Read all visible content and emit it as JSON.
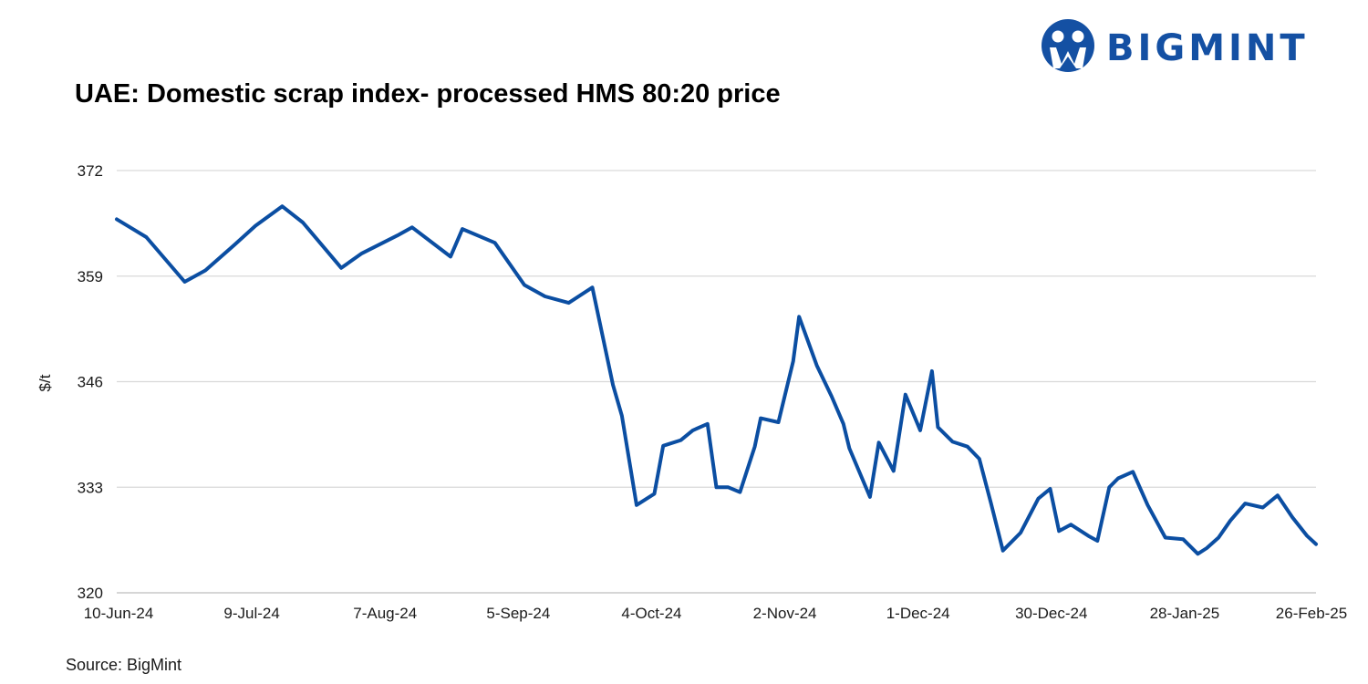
{
  "logo": {
    "text": "BIGMINT",
    "color": "#1450a3"
  },
  "source": "Source: BigMint",
  "chart_data": {
    "type": "line",
    "title": "UAE: Domestic scrap index- processed HMS 80:20 price",
    "xlabel": "",
    "ylabel": "$/t",
    "ylim": [
      320,
      372
    ],
    "yticks": [
      320,
      333,
      346,
      359,
      372
    ],
    "xticks": [
      "10-Jun-24",
      "9-Jul-24",
      "7-Aug-24",
      "5-Sep-24",
      "4-Oct-24",
      "2-Nov-24",
      "1-Dec-24",
      "30-Dec-24",
      "28-Jan-25",
      "26-Feb-25"
    ],
    "grid": true,
    "color": "#0b4ea2",
    "series": [
      {
        "x": [
          "10-Jun-24",
          "12-Jun-24",
          "17-Jun-24",
          "19-Jun-24",
          "24-Jun-24",
          "26-Jun-24",
          "1-Jul-24",
          "3-Jul-24",
          "5-Jul-24",
          "11-Jul-24",
          "13-Jul-24",
          "17-Jul-24",
          "19-Jul-24",
          "24-Jul-24",
          "26-Jul-24",
          "2-Aug-24",
          "7-Aug-24",
          "9-Aug-24",
          "16-Aug-24",
          "23-Aug-24",
          "29-Aug-24",
          "31-Aug-24",
          "5-Sep-24",
          "9-Sep-24",
          "13-Sep-24",
          "15-Sep-24",
          "21-Sep-24",
          "23-Sep-24",
          "28-Sep-24",
          "30-Sep-24",
          "4-Oct-24",
          "8-Oct-24",
          "10-Oct-24",
          "16-Oct-24",
          "18-Oct-24",
          "22-Oct-24",
          "24-Oct-24",
          "30-Oct-24",
          "1-Nov-24",
          "5-Nov-24",
          "7-Nov-24",
          "13-Nov-24",
          "15-Nov-24",
          "17-Nov-24",
          "21-Nov-24",
          "24-Nov-24",
          "30-Nov-24",
          "2-Dec-24",
          "7-Dec-24",
          "9-Dec-24",
          "14-Dec-24",
          "16-Dec-24",
          "21-Dec-24",
          "23-Dec-24",
          "27-Dec-24",
          "29-Dec-24",
          "4-Jan-25",
          "6-Jan-25",
          "10-Jan-25",
          "12-Jan-25",
          "16-Jan-25",
          "20-Jan-25",
          "22-Jan-25",
          "27-Jan-25",
          "29-Jan-25",
          "31-Jan-25",
          "4-Feb-25",
          "8-Feb-25",
          "10-Feb-25",
          "15-Feb-25",
          "17-Feb-25",
          "21-Feb-25",
          "23-Feb-25",
          "26-Feb-25"
        ],
        "values": [
          366.0,
          363.8,
          358.3,
          359.7,
          362.9,
          365.2,
          367.6,
          365.6,
          360.0,
          361.8,
          364.0,
          365.0,
          361.4,
          364.8,
          363.1,
          357.9,
          356.5,
          355.7,
          357.6,
          345.6,
          341.8,
          330.8,
          332.2,
          338.1,
          338.8,
          340.0,
          340.8,
          333.0,
          333.0,
          332.4,
          338.0,
          341.5,
          341.0,
          348.5,
          354.0,
          348.0,
          344.2,
          340.8,
          337.8,
          331.8,
          338.5,
          335.0,
          344.4,
          340.0,
          347.3,
          340.4,
          338.6,
          338.0,
          336.5,
          331.0,
          325.2,
          327.4,
          331.6,
          332.8,
          327.6,
          328.4,
          327.0,
          326.4,
          333.0,
          334.1,
          334.9,
          330.8,
          326.8,
          326.6,
          324.8,
          325.5,
          326.8,
          328.9,
          331.0,
          330.5,
          332.0,
          329.3,
          327.0,
          326.0
        ],
        "xpos": [
          0.0,
          1.0,
          2.3,
          3.0,
          4.0,
          4.7,
          5.6,
          6.3,
          7.6,
          8.3,
          9.5,
          10.0,
          11.3,
          11.7,
          12.8,
          13.8,
          14.5,
          15.3,
          16.1,
          16.8,
          17.1,
          17.6,
          18.2,
          18.5,
          19.1,
          19.5,
          20.0,
          20.3,
          20.7,
          21.1,
          21.6,
          21.8,
          22.4,
          22.9,
          23.1,
          23.7,
          24.2,
          24.6,
          24.8,
          25.5,
          25.8,
          26.3,
          26.7,
          27.2,
          27.6,
          27.8,
          28.3,
          28.8,
          29.2,
          29.6,
          30.0,
          30.6,
          31.2,
          31.6,
          31.9,
          32.3,
          32.9,
          33.2,
          33.6,
          33.9,
          34.4,
          34.9,
          35.5,
          36.1,
          36.6,
          36.9,
          37.3,
          37.7,
          38.2,
          38.8,
          39.3,
          39.8,
          40.3,
          40.6
        ]
      }
    ]
  }
}
